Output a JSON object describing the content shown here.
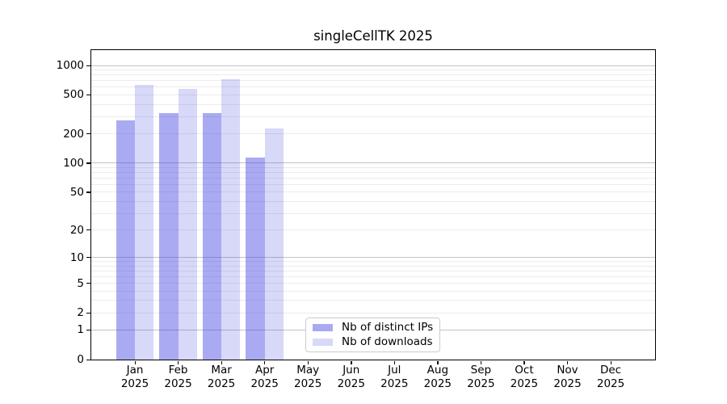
{
  "title": "singleCellTK 2025",
  "chart_data": {
    "type": "bar",
    "title": "singleCellTK 2025",
    "x_categories": [
      "Jan",
      "Feb",
      "Mar",
      "Apr",
      "May",
      "Jun",
      "Jul",
      "Aug",
      "Sep",
      "Oct",
      "Nov",
      "Dec"
    ],
    "x_year": "2025",
    "series": [
      {
        "name": "Nb of distinct IPs",
        "color": "#a9a9f2",
        "fill": "rgba(61,61,225,0.44)",
        "values": [
          275,
          326,
          326,
          113,
          0,
          0,
          0,
          0,
          0,
          0,
          0,
          0
        ]
      },
      {
        "name": "Nb of downloads",
        "color": "#d9d9f7",
        "fill": "rgba(61,61,225,0.20)",
        "values": [
          635,
          577,
          725,
          227,
          0,
          0,
          0,
          0,
          0,
          0,
          0,
          0
        ]
      }
    ],
    "y_scale": "log10(value+1)",
    "y_ticks": [
      1000,
      500,
      200,
      100,
      50,
      20,
      10,
      5,
      2,
      1,
      0
    ],
    "y_major_gridlines": [
      1000,
      100,
      10,
      1
    ],
    "ylim": [
      0,
      1460
    ],
    "xlabel": "",
    "ylabel": "",
    "grid": "on",
    "legend_position": "inside-bottom-center"
  },
  "legend": {
    "items": [
      {
        "label": "Nb of distinct IPs"
      },
      {
        "label": "Nb of downloads"
      }
    ]
  }
}
